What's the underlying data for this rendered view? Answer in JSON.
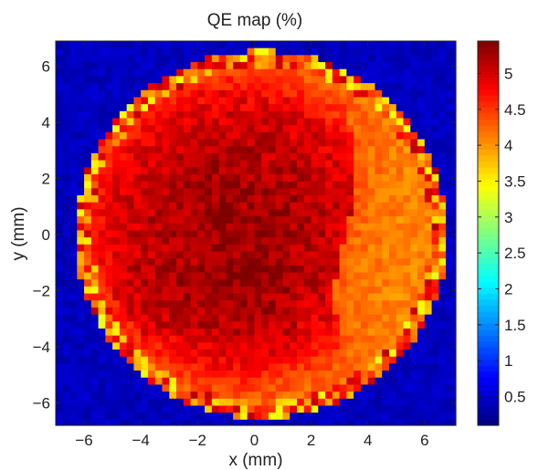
{
  "chart_data": {
    "type": "heatmap",
    "title": "QE map (%)",
    "xlabel": "x (mm)",
    "ylabel": "y (mm)",
    "xlim": [
      -7,
      7.1
    ],
    "ylim": [
      -6.8,
      6.9
    ],
    "xticks": [
      -6,
      -4,
      -2,
      0,
      2,
      4,
      6
    ],
    "yticks": [
      -6,
      -4,
      -2,
      0,
      2,
      4,
      6
    ],
    "grid": false,
    "colormap": "jet",
    "colorbar": {
      "min": 0.1,
      "max": 5.45,
      "ticks": [
        0.5,
        1,
        1.5,
        2,
        2.5,
        3,
        3.5,
        4,
        4.5,
        5
      ],
      "tick_labels": [
        "0.5",
        "1",
        "1.5",
        "2",
        "2.5",
        "3",
        "3.5",
        "4",
        "4.5",
        "5"
      ]
    },
    "grid_size": [
      57,
      57
    ],
    "map_model": {
      "cell_size_mm": 0.25,
      "disk_center_mm": [
        0.25,
        0.0
      ],
      "disk_radius_mm": 6.3,
      "background_value": 0.3,
      "rim_value": 4.2,
      "inner_peak_value": 5.3,
      "inner_region_center_mm": [
        -0.6,
        0.2
      ],
      "inner_region_radius_mm": 5.0,
      "right_lobe_value": 4.0,
      "right_boundary_x_mm": 3.2
    }
  }
}
